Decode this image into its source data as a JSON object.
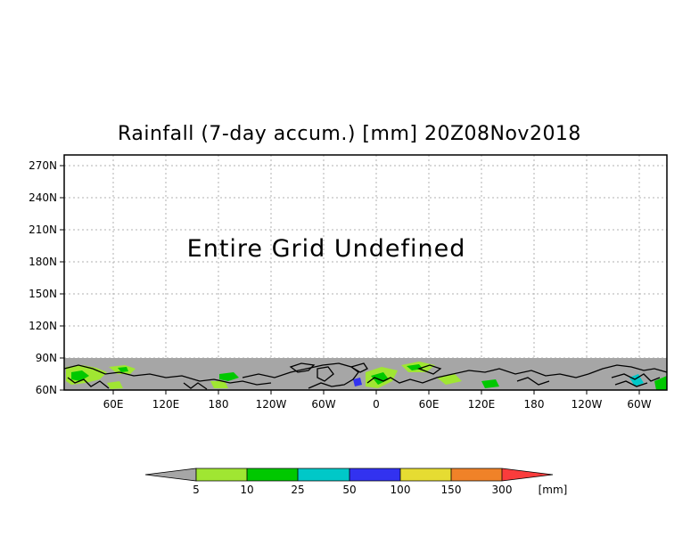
{
  "title": "Rainfall (7-day accum.) [mm] 20Z08Nov2018",
  "map": {
    "notice": "Entire Grid Undefined",
    "lat_labels": [
      "270N",
      "240N",
      "210N",
      "180N",
      "150N",
      "120N",
      "90N",
      "60N"
    ],
    "lon_labels": [
      "60E",
      "120E",
      "180",
      "120W",
      "60W",
      "0",
      "60E",
      "120E",
      "180",
      "120W",
      "60W"
    ],
    "colors": {
      "undefined_gray": "#a6a6a6",
      "grid": "#b0b0b0",
      "coast": "#000000"
    }
  },
  "colorbar": {
    "unit": "[mm]",
    "tick_labels": [
      "5",
      "10",
      "25",
      "50",
      "100",
      "150",
      "300"
    ],
    "bin_colors": [
      "#a0e632",
      "#00c800",
      "#00c8c8",
      "#3232f0",
      "#e6dc32",
      "#f08228",
      "#fa3c3c"
    ],
    "under_color": "#a6a6a6"
  }
}
